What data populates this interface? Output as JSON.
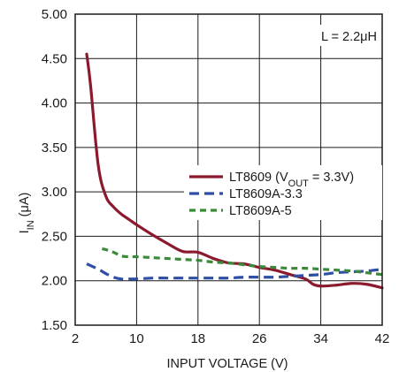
{
  "chart_data": {
    "type": "line",
    "xlabel": "INPUT VOLTAGE (V)",
    "ylabel": {
      "main": "I",
      "sub": "IN",
      "rest": " (μA)"
    },
    "xlim": [
      2,
      42
    ],
    "ylim": [
      1.5,
      5.0
    ],
    "xticks": [
      "2",
      "10",
      "18",
      "26",
      "34",
      "42"
    ],
    "yticks": [
      "1.50",
      "2.00",
      "2.50",
      "3.00",
      "3.50",
      "4.00",
      "4.50",
      "5.00"
    ],
    "grid": true,
    "annotation": "L = 2.2μH",
    "legend_placement": "right",
    "series": [
      {
        "name": "LT8609 (V_OUT = 3.3V)",
        "legend_parts": {
          "pre": "LT8609 (V",
          "sub": "OUT",
          "post": " = 3.3V)"
        },
        "color": "#8b1a2e",
        "style": "solid",
        "x": [
          3.5,
          4,
          5,
          6,
          7,
          8,
          9,
          10,
          12,
          14,
          16,
          18,
          20,
          22,
          24,
          26,
          28,
          30,
          32,
          33,
          34,
          36,
          38,
          40,
          42
        ],
        "y": [
          4.55,
          4.2,
          3.3,
          2.95,
          2.83,
          2.75,
          2.69,
          2.63,
          2.52,
          2.42,
          2.33,
          2.32,
          2.25,
          2.2,
          2.19,
          2.15,
          2.12,
          2.07,
          2.02,
          1.96,
          1.94,
          1.95,
          1.97,
          1.96,
          1.92
        ]
      },
      {
        "name": "LT8609A-3.3",
        "color": "#2e4fa3",
        "style": "dash",
        "x": [
          3.5,
          5,
          6,
          7,
          8,
          9,
          10,
          12,
          14,
          16,
          18,
          20,
          22,
          24,
          26,
          28,
          30,
          32,
          34,
          36,
          38,
          40,
          42
        ],
        "y": [
          2.19,
          2.13,
          2.08,
          2.04,
          2.02,
          2.02,
          2.02,
          2.03,
          2.03,
          2.03,
          2.03,
          2.03,
          2.03,
          2.04,
          2.04,
          2.04,
          2.05,
          2.06,
          2.07,
          2.09,
          2.1,
          2.11,
          2.13
        ]
      },
      {
        "name": "LT8609A-5",
        "color": "#3a8a3a",
        "style": "dash",
        "x": [
          5.5,
          6,
          7,
          8,
          9,
          10,
          12,
          14,
          16,
          18,
          20,
          22,
          24,
          26,
          28,
          30,
          32,
          34,
          36,
          38,
          40,
          42
        ],
        "y": [
          2.36,
          2.35,
          2.32,
          2.28,
          2.27,
          2.27,
          2.26,
          2.25,
          2.24,
          2.23,
          2.21,
          2.2,
          2.18,
          2.16,
          2.15,
          2.14,
          2.14,
          2.13,
          2.12,
          2.11,
          2.09,
          2.07
        ]
      }
    ]
  }
}
